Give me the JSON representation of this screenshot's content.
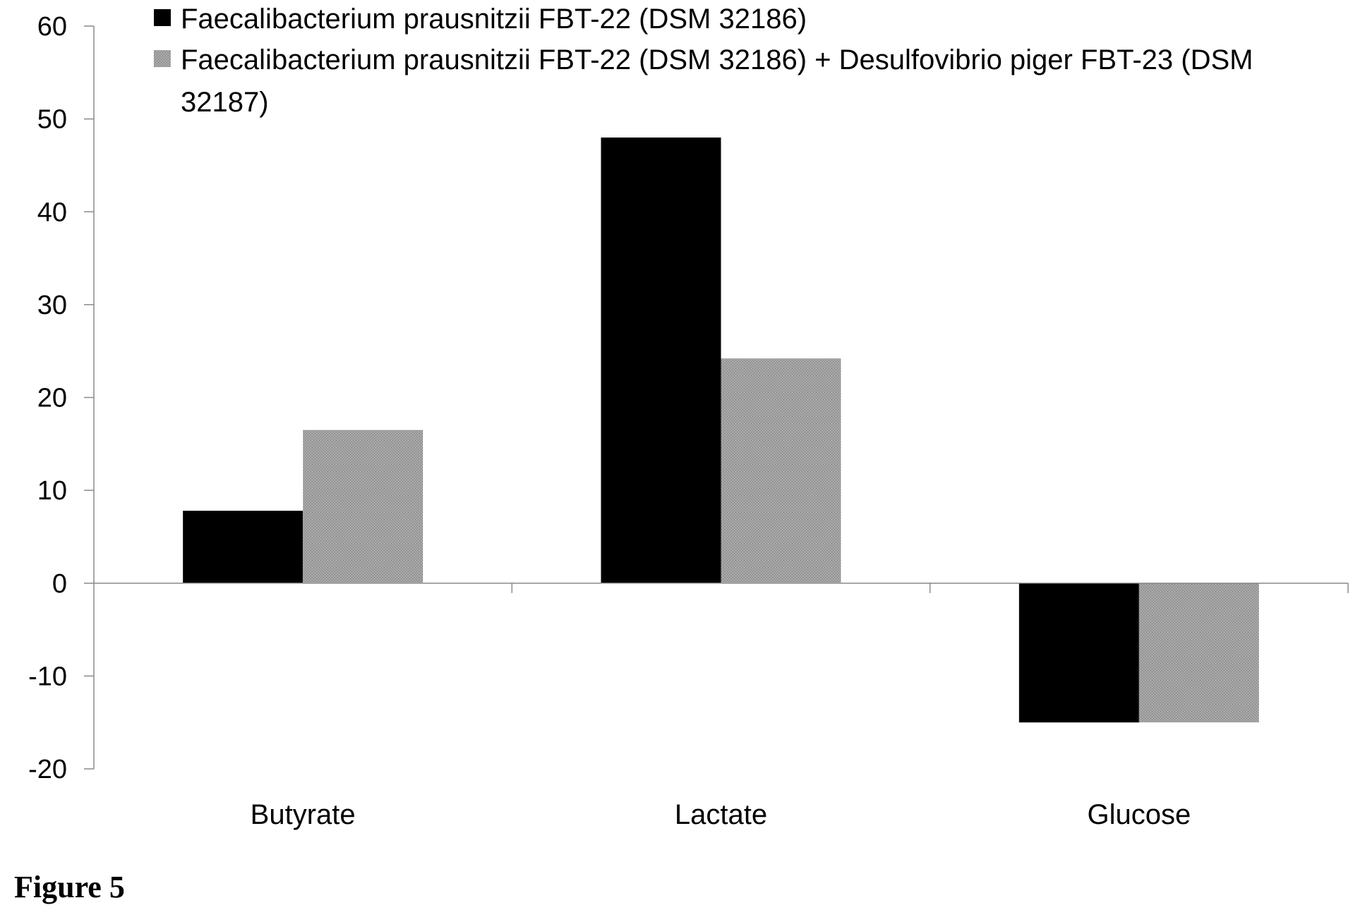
{
  "figure_caption": "Figure 5",
  "chart_data": {
    "type": "bar",
    "categories": [
      "Butyrate",
      "Lactate",
      "Glucose"
    ],
    "series": [
      {
        "name": "Faecalibacterium prausnitzii FBT-22 (DSM 32186)",
        "values": [
          7.8,
          48.0,
          -15.0
        ],
        "color": "#000000",
        "pattern": "solid"
      },
      {
        "name": "Faecalibacterium prausnitzii FBT-22 (DSM 32186) + Desulfovibrio piger FBT-23 (DSM 32187)",
        "values": [
          16.5,
          24.2,
          -15.0
        ],
        "color": "#9a9a9a",
        "pattern": "dotted-gray"
      }
    ],
    "legend_lines": [
      [
        "Faecalibacterium prausnitzii FBT-22 (DSM 32186)"
      ],
      [
        "Faecalibacterium prausnitzii FBT-22 (DSM 32186) + Desulfovibrio piger FBT-23 (DSM",
        "32187)"
      ]
    ],
    "ylim": [
      -20,
      60
    ],
    "yticks": [
      60,
      50,
      40,
      30,
      20,
      10,
      0,
      -10,
      -20
    ],
    "title": "",
    "xlabel": "",
    "ylabel": "",
    "grid": false,
    "legend_position": "top"
  }
}
